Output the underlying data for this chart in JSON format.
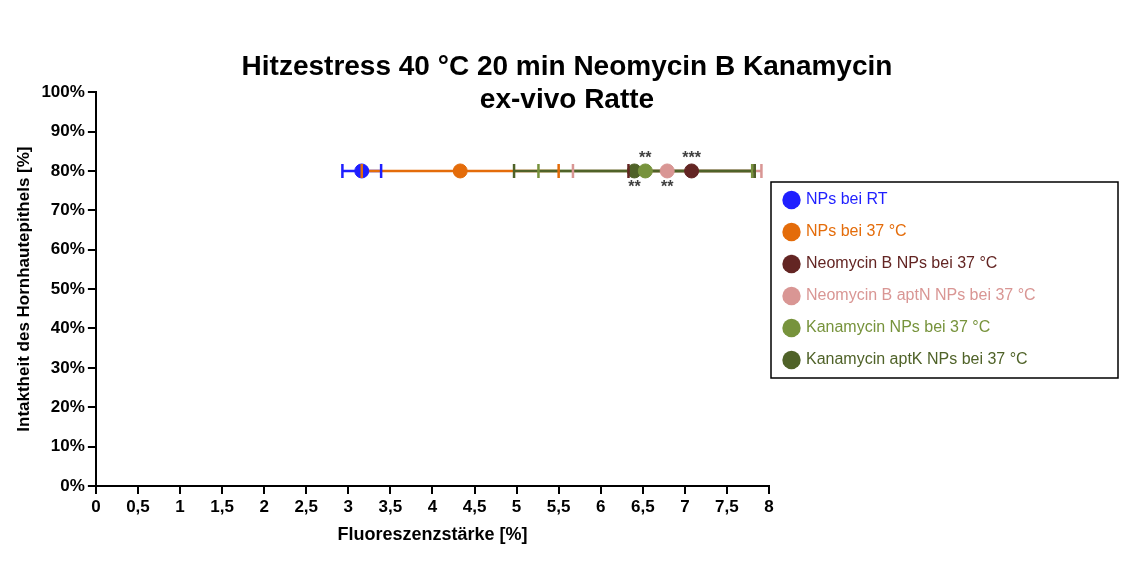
{
  "chart_data": {
    "type": "scatter",
    "title": "Hitzestress 40 °C 20 min Neomycin B Kanamycin\nex-vivo Ratte",
    "xlabel": "Fluoreszenzstärke [%]",
    "ylabel": "Intaktheit des Hornhautepithels [%]",
    "series": [
      {
        "name": "NPs bei RT",
        "color": "#1f1fff",
        "x": [
          3.16
        ],
        "values": [
          80
        ],
        "xerrors": [
          0.23
        ]
      },
      {
        "name": "NPs bei 37 °C",
        "color": "#e46c0a",
        "x": [
          4.33
        ],
        "values": [
          80
        ],
        "xerrors": [
          1.17
        ]
      },
      {
        "name": "Neomycin B NPs bei 37 °C",
        "color": "#632523",
        "x": [
          7.08
        ],
        "values": [
          80
        ],
        "xerrors": [
          0.75
        ]
      },
      {
        "name": "Neomycin B aptN NPs bei 37 °C",
        "color": "#d99694",
        "x": [
          6.79
        ],
        "values": [
          80
        ],
        "xerrors": [
          1.12
        ]
      },
      {
        "name": "Kanamycin NPs bei 37 °C",
        "color": "#77933c",
        "x": [
          6.53
        ],
        "values": [
          80
        ],
        "xerrors": [
          1.27
        ]
      },
      {
        "name": "Kanamycin aptK NPs bei 37 °C",
        "color": "#4f6228",
        "x": [
          6.4
        ],
        "values": [
          80
        ],
        "xerrors": [
          1.43
        ]
      }
    ],
    "annotations": [
      {
        "text": "**",
        "x": 6.53,
        "y": 80
      },
      {
        "text": "**",
        "x": 6.4,
        "y": 80
      },
      {
        "text": "***",
        "x": 7.08,
        "y": 80
      },
      {
        "text": "**",
        "x": 6.79,
        "y": 80
      }
    ],
    "xlim": [
      0,
      8
    ],
    "xticks": [
      0,
      {
        "value": 0.5,
        "label": "0,5"
      },
      1,
      {
        "value": 1.5,
        "label": "1,5"
      },
      2,
      {
        "value": 2.5,
        "label": "2,5"
      },
      3,
      {
        "value": 3.5,
        "label": "3,5"
      },
      4,
      {
        "value": 4.5,
        "label": "4,5"
      },
      5,
      {
        "value": 5.5,
        "label": "5,5"
      },
      6,
      {
        "value": 6.5,
        "label": "6,5"
      },
      7,
      {
        "value": 7.5,
        "label": "7,5"
      },
      8
    ],
    "ylim": [
      0,
      100
    ],
    "yticks": [
      {
        "value": 0,
        "label": "0%"
      },
      {
        "value": 10,
        "label": "10%"
      },
      {
        "value": 20,
        "label": "20%"
      },
      {
        "value": 30,
        "label": "30%"
      },
      {
        "value": 40,
        "label": "40%"
      },
      {
        "value": 50,
        "label": "50%"
      },
      {
        "value": 60,
        "label": "60%"
      },
      {
        "value": 70,
        "label": "70%"
      },
      {
        "value": 80,
        "label": "80%"
      },
      {
        "value": 90,
        "label": "90%"
      },
      {
        "value": 100,
        "label": "100%"
      }
    ],
    "legend": "right",
    "grid": false,
    "marker": "circle"
  }
}
